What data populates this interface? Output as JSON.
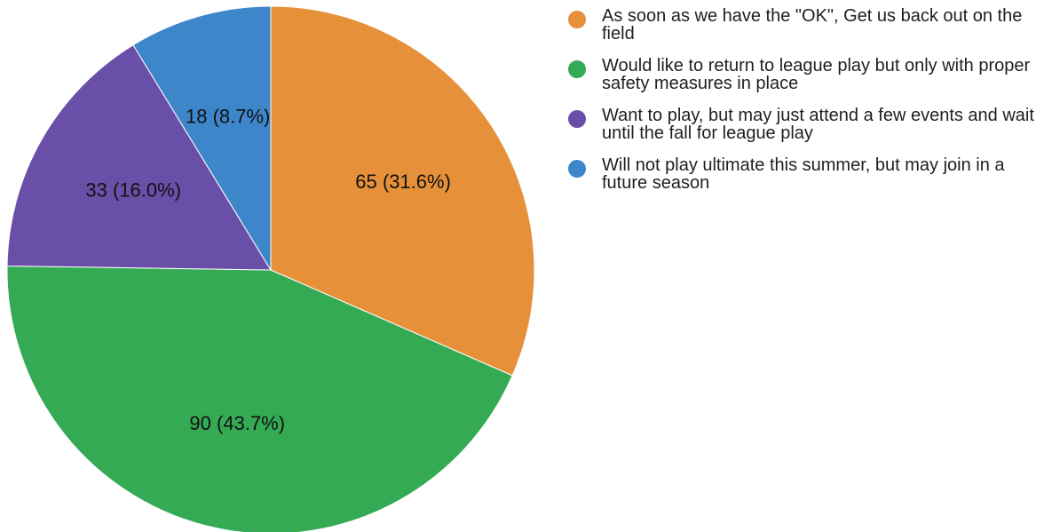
{
  "chart_data": {
    "type": "pie",
    "categories": [
      "As soon as we have the \"OK\", Get us back out on the field",
      "Would like to return to league play but only with proper safety measures in place",
      "Want to play, but may just attend a few events and wait until the fall for league play",
      "Will not play ultimate this summer, but may join in a future season"
    ],
    "values": [
      65,
      90,
      33,
      18
    ],
    "percentages": [
      31.6,
      43.7,
      16.0,
      8.7
    ],
    "slice_labels": [
      "65 (31.6%)",
      "90 (43.7%)",
      "33 (16.0%)",
      "18 (8.7%)"
    ],
    "colors": [
      "#e6913a",
      "#35aa55",
      "#6a4fa8",
      "#3d86ca"
    ],
    "legend_position": "right",
    "start_angle": "top",
    "direction": "clockwise"
  }
}
